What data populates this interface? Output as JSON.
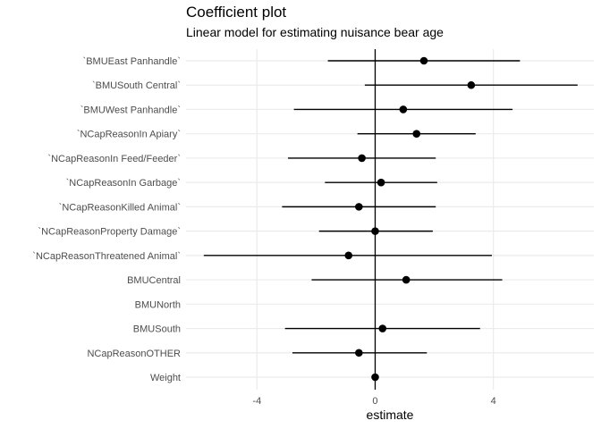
{
  "chart_data": {
    "type": "scatter",
    "title": "Coefficient plot",
    "subtitle": "Linear model for estimating nuisance bear age",
    "xlabel": "estimate",
    "ylabel": "",
    "xlim": [
      -6.4,
      7.4
    ],
    "x_ticks": [
      -4,
      0,
      4
    ],
    "x_tick_labels": [
      "-4",
      "0",
      "4"
    ],
    "grid": true,
    "terms": [
      {
        "label": "`BMUEast Panhandle`",
        "estimate": 1.65,
        "low": -1.6,
        "high": 4.9
      },
      {
        "label": "`BMUSouth Central`",
        "estimate": 3.25,
        "low": -0.35,
        "high": 6.85
      },
      {
        "label": "`BMUWest Panhandle`",
        "estimate": 0.95,
        "low": -2.75,
        "high": 4.65
      },
      {
        "label": "`NCapReasonIn Apiary`",
        "estimate": 1.4,
        "low": -0.6,
        "high": 3.4
      },
      {
        "label": "`NCapReasonIn Feed/Feeder`",
        "estimate": -0.45,
        "low": -2.95,
        "high": 2.05
      },
      {
        "label": "`NCapReasonIn Garbage`",
        "estimate": 0.2,
        "low": -1.7,
        "high": 2.1
      },
      {
        "label": "`NCapReasonKilled Animal`",
        "estimate": -0.55,
        "low": -3.15,
        "high": 2.05
      },
      {
        "label": "`NCapReasonProperty Damage`",
        "estimate": 0.0,
        "low": -1.9,
        "high": 1.95
      },
      {
        "label": "`NCapReasonThreatened Animal`",
        "estimate": -0.9,
        "low": -5.8,
        "high": 3.95
      },
      {
        "label": "BMUCentral",
        "estimate": 1.05,
        "low": -2.15,
        "high": 4.3
      },
      {
        "label": "BMUNorth",
        "estimate": null,
        "low": null,
        "high": null
      },
      {
        "label": "BMUSouth",
        "estimate": 0.25,
        "low": -3.05,
        "high": 3.55
      },
      {
        "label": "NCapReasonOTHER",
        "estimate": -0.55,
        "low": -2.8,
        "high": 1.75
      },
      {
        "label": "Weight",
        "estimate": 0.0,
        "low": -0.02,
        "high": 0.02
      }
    ],
    "colors": {
      "point": "#000000",
      "grid": "#ebebeb",
      "zero_line": "#000000",
      "tick_label": "#4d4d4d"
    }
  }
}
